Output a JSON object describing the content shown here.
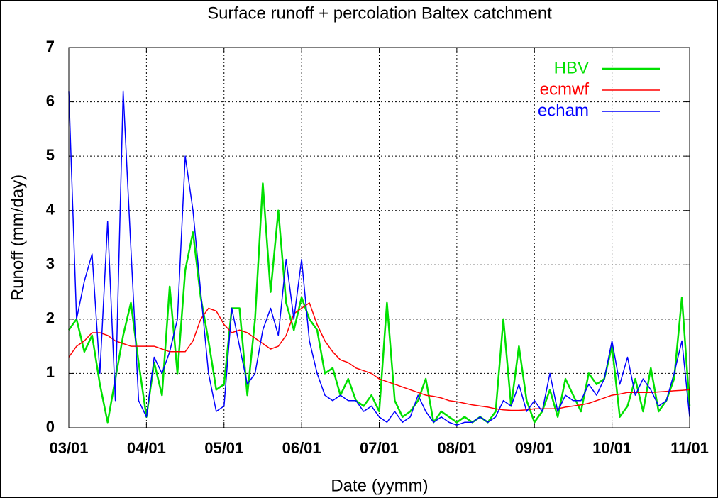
{
  "chart_data": {
    "type": "line",
    "title": "Surface runoff + percolation Baltex catchment",
    "xlabel": "Date (yymm)",
    "ylabel": "Runoff (mm/day)",
    "xlim": [
      0,
      8
    ],
    "ylim": [
      0,
      7
    ],
    "xticks": [
      {
        "value": 0,
        "label": "03/01"
      },
      {
        "value": 1,
        "label": "04/01"
      },
      {
        "value": 2,
        "label": "05/01"
      },
      {
        "value": 3,
        "label": "06/01"
      },
      {
        "value": 4,
        "label": "07/01"
      },
      {
        "value": 5,
        "label": "08/01"
      },
      {
        "value": 6,
        "label": "09/01"
      },
      {
        "value": 7,
        "label": "10/01"
      },
      {
        "value": 8,
        "label": "11/01"
      }
    ],
    "yticks": [
      0,
      1,
      2,
      3,
      4,
      5,
      6,
      7
    ],
    "grid": true,
    "legend": "top-right",
    "x": [
      0,
      0.1,
      0.2,
      0.3,
      0.4,
      0.5,
      0.6,
      0.7,
      0.8,
      0.9,
      1,
      1.1,
      1.2,
      1.3,
      1.4,
      1.5,
      1.6,
      1.7,
      1.8,
      1.9,
      2,
      2.1,
      2.2,
      2.3,
      2.4,
      2.5,
      2.6,
      2.7,
      2.8,
      2.9,
      3,
      3.1,
      3.2,
      3.3,
      3.4,
      3.5,
      3.6,
      3.7,
      3.8,
      3.9,
      4,
      4.1,
      4.2,
      4.3,
      4.4,
      4.5,
      4.6,
      4.7,
      4.8,
      4.9,
      5,
      5.1,
      5.2,
      5.3,
      5.4,
      5.5,
      5.6,
      5.7,
      5.8,
      5.9,
      6,
      6.1,
      6.2,
      6.3,
      6.4,
      6.5,
      6.6,
      6.7,
      6.8,
      6.9,
      7,
      7.1,
      7.2,
      7.3,
      7.4,
      7.5,
      7.6,
      7.7,
      7.8,
      7.9,
      8
    ],
    "series": [
      {
        "name": "HBV",
        "color": "#00e000",
        "width": 2.5,
        "values": [
          1.8,
          2.0,
          1.4,
          1.7,
          0.8,
          0.1,
          0.9,
          1.7,
          2.3,
          1.2,
          0.2,
          1.2,
          0.6,
          2.6,
          1.0,
          2.9,
          3.6,
          2.4,
          1.6,
          0.7,
          0.8,
          2.2,
          2.2,
          0.6,
          2.0,
          4.5,
          2.5,
          4.0,
          2.3,
          1.8,
          2.4,
          2.0,
          1.8,
          1.0,
          1.1,
          0.6,
          0.9,
          0.5,
          0.4,
          0.6,
          0.3,
          2.3,
          0.5,
          0.2,
          0.3,
          0.5,
          0.9,
          0.1,
          0.3,
          0.2,
          0.1,
          0.2,
          0.1,
          0.2,
          0.1,
          0.3,
          2.0,
          0.4,
          1.5,
          0.5,
          0.1,
          0.3,
          0.7,
          0.2,
          0.9,
          0.6,
          0.3,
          1.0,
          0.8,
          0.9,
          1.5,
          0.2,
          0.4,
          0.9,
          0.3,
          1.1,
          0.3,
          0.5,
          0.9,
          2.4,
          0.4
        ]
      },
      {
        "name": "ecmwf",
        "color": "#ff0000",
        "width": 1.5,
        "values": [
          1.3,
          1.5,
          1.6,
          1.75,
          1.75,
          1.7,
          1.6,
          1.55,
          1.5,
          1.5,
          1.5,
          1.5,
          1.45,
          1.4,
          1.4,
          1.4,
          1.6,
          2.0,
          2.2,
          2.15,
          1.9,
          1.75,
          1.8,
          1.75,
          1.65,
          1.55,
          1.45,
          1.5,
          1.7,
          2.1,
          2.2,
          2.3,
          1.9,
          1.6,
          1.4,
          1.25,
          1.2,
          1.1,
          1.05,
          1.0,
          0.9,
          0.85,
          0.8,
          0.75,
          0.7,
          0.65,
          0.6,
          0.58,
          0.55,
          0.5,
          0.48,
          0.45,
          0.42,
          0.4,
          0.38,
          0.35,
          0.33,
          0.32,
          0.32,
          0.33,
          0.35,
          0.35,
          0.35,
          0.35,
          0.38,
          0.4,
          0.42,
          0.45,
          0.5,
          0.55,
          0.6,
          0.62,
          0.65,
          0.65,
          0.65,
          0.65,
          0.66,
          0.67,
          0.68,
          0.69,
          0.7
        ]
      },
      {
        "name": "echam",
        "color": "#0000ff",
        "width": 1.5,
        "values": [
          6.2,
          2.0,
          2.7,
          3.2,
          1.0,
          3.8,
          0.5,
          6.2,
          3.3,
          0.5,
          0.2,
          1.3,
          1.0,
          1.4,
          2.0,
          5.0,
          4.0,
          2.5,
          1.0,
          0.3,
          0.4,
          2.2,
          1.5,
          0.8,
          1.0,
          1.8,
          2.2,
          1.7,
          3.1,
          2.0,
          3.1,
          1.6,
          1.0,
          0.6,
          0.5,
          0.6,
          0.5,
          0.5,
          0.3,
          0.4,
          0.2,
          0.1,
          0.3,
          0.1,
          0.2,
          0.6,
          0.3,
          0.1,
          0.2,
          0.1,
          0.05,
          0.1,
          0.1,
          0.2,
          0.1,
          0.2,
          0.5,
          0.4,
          0.8,
          0.3,
          0.5,
          0.3,
          1.0,
          0.3,
          0.6,
          0.5,
          0.5,
          0.8,
          0.6,
          0.9,
          1.6,
          0.8,
          1.3,
          0.6,
          0.9,
          0.7,
          0.4,
          0.5,
          1.0,
          1.6,
          0.2
        ]
      }
    ]
  }
}
